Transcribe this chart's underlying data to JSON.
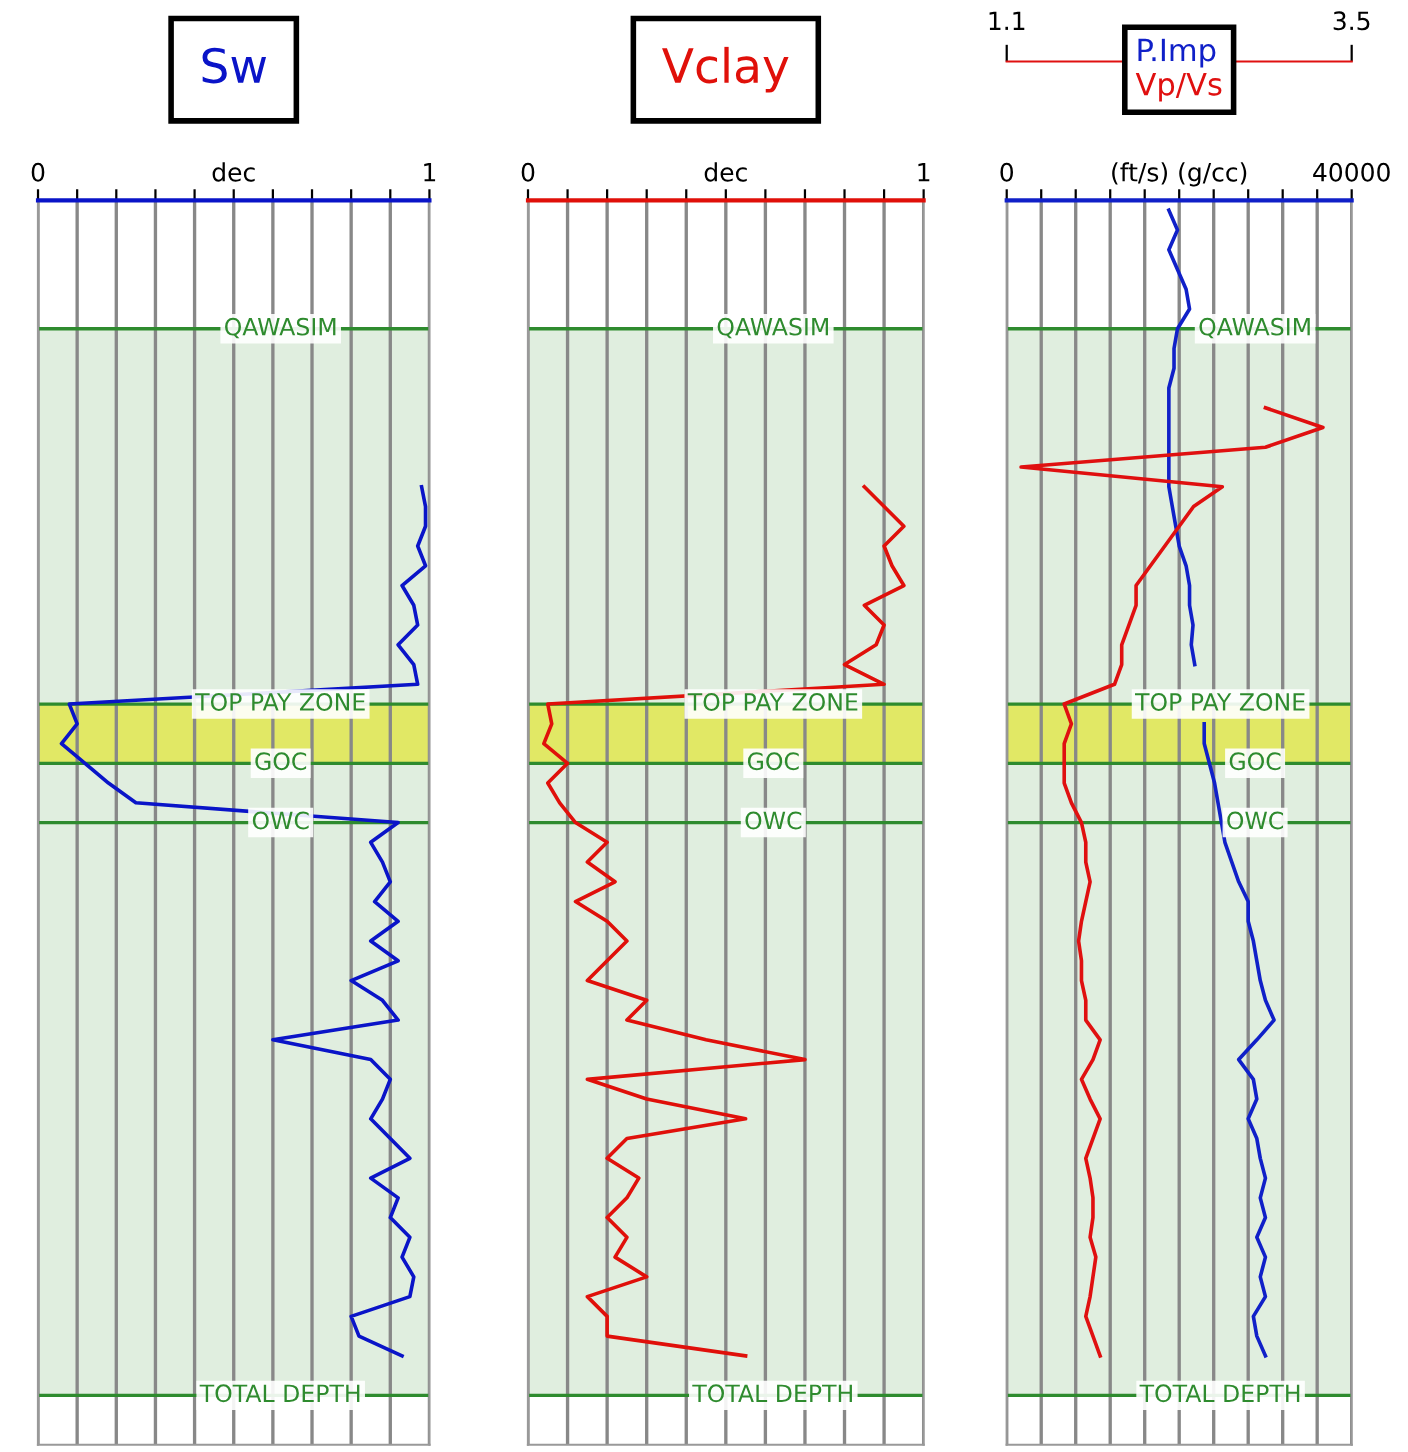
{
  "chart_data": [
    {
      "type": "line",
      "orientation": "horizontal",
      "legend": "top",
      "grid": "x",
      "categories": [
        null,
        null,
        null,
        null,
        null,
        null,
        "QAWASIM",
        null,
        null,
        null,
        null,
        null,
        null,
        null,
        null,
        null,
        null,
        null,
        null,
        null,
        null,
        null,
        null,
        null,
        null,
        "TOP PAY ZONE",
        null,
        null,
        "GOC",
        null,
        null,
        "OWC",
        null,
        null,
        null,
        null,
        null,
        null,
        null,
        null,
        null,
        null,
        null,
        null,
        null,
        null,
        null,
        null,
        null,
        null,
        null,
        null,
        null,
        null,
        null,
        null,
        null,
        null,
        null,
        null,
        "TOTAL DEPTH",
        null,
        null
      ],
      "series": [
        {
          "name": "Sw",
          "color": "#0a14c8",
          "values": [
            null,
            null,
            null,
            null,
            null,
            null,
            null,
            null,
            null,
            null,
            null,
            null,
            null,
            null,
            0.98,
            0.99,
            0.99,
            0.97,
            0.99,
            0.93,
            0.96,
            0.97,
            0.92,
            0.96,
            0.97,
            0.08,
            0.1,
            0.06,
            0.12,
            0.18,
            0.25,
            0.92,
            0.85,
            0.88,
            0.9,
            0.86,
            0.92,
            0.85,
            0.92,
            0.8,
            0.88,
            0.92,
            0.6,
            0.85,
            0.9,
            0.88,
            0.85,
            0.9,
            0.95,
            0.85,
            0.92,
            0.9,
            0.95,
            0.93,
            0.96,
            0.95,
            0.8,
            0.82,
            0.93,
            null,
            null,
            null,
            null
          ]
        }
      ],
      "xlim": [
        0,
        1
      ],
      "xticks": [
        0,
        {
          "value": 0.1,
          "label": null
        },
        {
          "value": 0.2,
          "label": null
        },
        {
          "value": 0.3,
          "label": null
        },
        {
          "value": 0.4,
          "label": null
        },
        {
          "value": 0.5,
          "label": "dec"
        },
        {
          "value": 0.6,
          "label": null
        },
        {
          "value": 0.7,
          "label": null
        },
        {
          "value": 0.8,
          "label": null
        },
        {
          "value": 0.9,
          "label": null
        },
        1
      ],
      "ref_lines": [
        {
          "axis": "y",
          "value": "QAWASIM",
          "color": "#2e8b2e"
        },
        {
          "axis": "y",
          "value": "TOP PAY ZONE",
          "color": "#2e8b2e"
        },
        {
          "axis": "y",
          "value": "GOC",
          "color": "#2e8b2e"
        },
        {
          "axis": "y",
          "value": "OWC",
          "color": "#2e8b2e"
        },
        {
          "axis": "y",
          "value": "TOTAL DEPTH",
          "color": "#2e8b2e"
        }
      ],
      "bands": [
        {
          "axis": "y",
          "from": "QAWASIM",
          "to": "TOTAL DEPTH",
          "color": "#d5e8d4"
        },
        {
          "axis": "y",
          "from": "TOP PAY ZONE",
          "to": "GOC",
          "color": "#e2e63c"
        }
      ]
    },
    {
      "type": "line",
      "orientation": "horizontal",
      "legend": "top",
      "grid": "x",
      "categories": [
        null,
        null,
        null,
        null,
        null,
        null,
        "QAWASIM",
        null,
        null,
        null,
        null,
        null,
        null,
        null,
        null,
        null,
        null,
        null,
        null,
        null,
        null,
        null,
        null,
        null,
        null,
        "TOP PAY ZONE",
        null,
        null,
        "GOC",
        null,
        null,
        "OWC",
        null,
        null,
        null,
        null,
        null,
        null,
        null,
        null,
        null,
        null,
        null,
        null,
        null,
        null,
        null,
        null,
        null,
        null,
        null,
        null,
        null,
        null,
        null,
        null,
        null,
        null,
        null,
        null,
        "TOTAL DEPTH",
        null,
        null
      ],
      "series": [
        {
          "name": "Vclay",
          "color": "#e0100a",
          "values": [
            null,
            null,
            null,
            null,
            null,
            null,
            null,
            null,
            null,
            null,
            null,
            null,
            null,
            null,
            0.85,
            0.9,
            0.95,
            0.9,
            0.92,
            0.95,
            0.85,
            0.9,
            0.88,
            0.8,
            0.9,
            0.05,
            0.06,
            0.04,
            0.1,
            0.05,
            0.08,
            0.12,
            0.2,
            0.15,
            0.22,
            0.12,
            0.2,
            0.25,
            0.2,
            0.15,
            0.3,
            0.25,
            0.45,
            0.7,
            0.15,
            0.3,
            0.55,
            0.25,
            0.2,
            0.28,
            0.25,
            0.2,
            0.25,
            0.22,
            0.3,
            0.15,
            0.2,
            0.2,
            0.55,
            null,
            null,
            null,
            null
          ]
        }
      ],
      "xlim": [
        0,
        1
      ],
      "xticks": [
        0,
        {
          "value": 0.1,
          "label": null
        },
        {
          "value": 0.2,
          "label": null
        },
        {
          "value": 0.3,
          "label": null
        },
        {
          "value": 0.4,
          "label": null
        },
        {
          "value": 0.5,
          "label": "dec"
        },
        {
          "value": 0.6,
          "label": null
        },
        {
          "value": 0.7,
          "label": null
        },
        {
          "value": 0.8,
          "label": null
        },
        {
          "value": 0.9,
          "label": null
        },
        1
      ],
      "ref_lines": [
        {
          "axis": "y",
          "value": "QAWASIM",
          "color": "#2e8b2e"
        },
        {
          "axis": "y",
          "value": "TOP PAY ZONE",
          "color": "#2e8b2e"
        },
        {
          "axis": "y",
          "value": "GOC",
          "color": "#2e8b2e"
        },
        {
          "axis": "y",
          "value": "OWC",
          "color": "#2e8b2e"
        },
        {
          "axis": "y",
          "value": "TOTAL DEPTH",
          "color": "#2e8b2e"
        }
      ],
      "bands": [
        {
          "axis": "y",
          "from": "QAWASIM",
          "to": "TOTAL DEPTH",
          "color": "#d5e8d4"
        },
        {
          "axis": "y",
          "from": "TOP PAY ZONE",
          "to": "GOC",
          "color": "#e2e63c"
        }
      ]
    },
    {
      "type": "line",
      "orientation": "horizontal",
      "legend": "top",
      "grid": "x",
      "categories": [
        null,
        null,
        null,
        null,
        null,
        null,
        "QAWASIM",
        null,
        null,
        null,
        null,
        null,
        null,
        null,
        null,
        null,
        null,
        null,
        null,
        null,
        null,
        null,
        null,
        null,
        null,
        "TOP PAY ZONE",
        null,
        null,
        "GOC",
        null,
        null,
        "OWC",
        null,
        null,
        null,
        null,
        null,
        null,
        null,
        null,
        null,
        null,
        null,
        null,
        null,
        null,
        null,
        null,
        null,
        null,
        null,
        null,
        null,
        null,
        null,
        null,
        null,
        null,
        null,
        null,
        "TOTAL DEPTH",
        null,
        null
      ],
      "series": [
        {
          "name": "P.Imp",
          "color": "#1020c8",
          "values": [
            18800,
            19800,
            18800,
            19800,
            20800,
            21200,
            19800,
            19400,
            19400,
            18800,
            18800,
            18800,
            18800,
            18800,
            18800,
            19200,
            19600,
            20000,
            20800,
            21200,
            21200,
            21600,
            21400,
            21800,
            null,
            null,
            22900,
            22900,
            23500,
            24100,
            24500,
            24900,
            25300,
            26100,
            26900,
            28000,
            28000,
            28600,
            29000,
            29400,
            30000,
            31000,
            29000,
            26900,
            28600,
            29000,
            28000,
            29000,
            29400,
            30000,
            29400,
            30000,
            29000,
            30000,
            29400,
            30000,
            28600,
            29000,
            30000,
            null,
            null,
            null,
            null
          ]
        },
        {
          "name": "Vp/Vs",
          "color": "#e01010",
          "axis": "x2",
          "values": [
            null,
            null,
            null,
            null,
            null,
            null,
            null,
            null,
            null,
            null,
            2.9,
            3.3,
            2.9,
            1.2,
            2.6,
            2.4,
            2.3,
            2.2,
            2.1,
            2.0,
            2.0,
            1.95,
            1.9,
            1.9,
            1.85,
            1.5,
            1.55,
            1.5,
            1.5,
            1.5,
            1.55,
            1.62,
            1.65,
            1.65,
            1.68,
            1.65,
            1.62,
            1.6,
            1.62,
            1.62,
            1.65,
            1.65,
            1.75,
            1.7,
            1.62,
            1.68,
            1.75,
            1.7,
            1.65,
            1.68,
            1.7,
            1.7,
            1.68,
            1.72,
            1.7,
            1.68,
            1.65,
            1.7,
            1.75,
            null,
            null,
            null,
            null
          ]
        }
      ],
      "xlim": [
        0,
        40000
      ],
      "xticks": [
        0,
        {
          "value": 4000,
          "label": null
        },
        {
          "value": 8000,
          "label": null
        },
        {
          "value": 12000,
          "label": null
        },
        {
          "value": 16000,
          "label": null
        },
        {
          "value": 20000,
          "label": "(ft/s) (g/cc)"
        },
        {
          "value": 24000,
          "label": null
        },
        {
          "value": 28000,
          "label": null
        },
        {
          "value": 32000,
          "label": null
        },
        {
          "value": 36000,
          "label": null
        },
        40000
      ],
      "x2lim": [
        1.1,
        3.5
      ],
      "x2ticks": [
        1.1,
        3.5
      ],
      "ref_lines": [
        {
          "axis": "y",
          "value": "QAWASIM",
          "color": "#2e8b2e"
        },
        {
          "axis": "y",
          "value": "TOP PAY ZONE",
          "color": "#2e8b2e"
        },
        {
          "axis": "y",
          "value": "GOC",
          "color": "#2e8b2e"
        },
        {
          "axis": "y",
          "value": "OWC",
          "color": "#2e8b2e"
        },
        {
          "axis": "y",
          "value": "TOTAL DEPTH",
          "color": "#2e8b2e"
        }
      ],
      "bands": [
        {
          "axis": "y",
          "from": "QAWASIM",
          "to": "TOTAL DEPTH",
          "color": "#d5e8d4"
        },
        {
          "axis": "y",
          "from": "TOP PAY ZONE",
          "to": "GOC",
          "color": "#e2e63c"
        }
      ]
    }
  ]
}
